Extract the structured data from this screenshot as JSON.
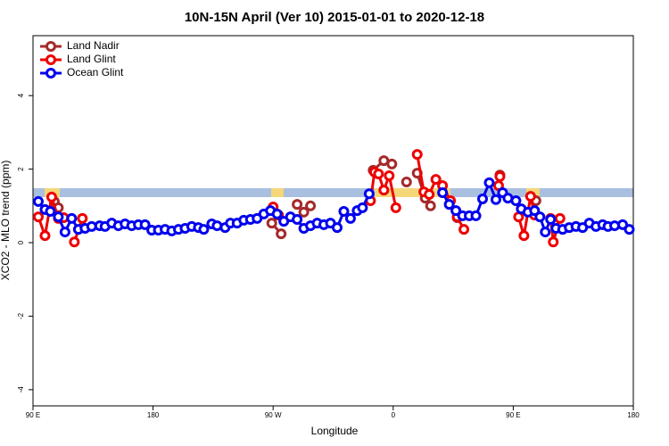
{
  "chart_data": {
    "type": "line",
    "title": "10N-15N April (Ver 10)   2015-01-01 to 2020-12-18",
    "xlabel": "Longitude",
    "ylabel": "XCO2 - MLO trend (ppm)",
    "xlim": [
      90,
      540
    ],
    "ylim": [
      -4.44,
      5.63
    ],
    "xticks": [
      {
        "value": 90,
        "label": "90 E"
      },
      180,
      {
        "value": 270,
        "label": "90 W"
      },
      {
        "value": 360,
        "label": "0"
      },
      {
        "value": 450,
        "label": "90 E"
      },
      {
        "value": 540,
        "label": "180"
      }
    ],
    "yticks": [
      -4,
      -2,
      0,
      2,
      4
    ],
    "legend": "top-left",
    "series": [
      {
        "name": "Land Nadir",
        "color": "#a52a2a",
        "x": [
          106,
          109,
          null,
          269,
          276,
          null,
          288,
          293,
          298,
          null,
          345,
          353,
          359,
          null,
          370,
          null,
          378,
          384,
          388,
          null,
          408,
          null,
          440,
          null,
          467
        ],
        "values": [
          1.12,
          0.95,
          null,
          0.53,
          0.24,
          null,
          1.04,
          0.83,
          1.0,
          null,
          1.97,
          2.23,
          2.14,
          null,
          1.65,
          null,
          1.89,
          1.21,
          1.0,
          null,
          0.68,
          null,
          1.84,
          null,
          1.14
        ]
      },
      {
        "name": "Land Glint",
        "color": "#ee0000",
        "x": [
          94,
          99,
          104,
          109,
          113,
          null,
          121,
          127,
          null,
          270,
          274,
          null,
          343,
          346,
          349,
          353,
          357,
          362,
          null,
          378,
          383,
          387,
          392,
          397,
          403,
          408,
          413,
          null,
          439,
          440,
          null,
          454,
          458,
          463,
          466,
          null,
          478,
          480,
          485
        ],
        "values": [
          0.7,
          0.19,
          1.24,
          0.66,
          0.68,
          null,
          0.02,
          0.66,
          null,
          0.97,
          0.75,
          null,
          1.14,
          1.92,
          1.87,
          1.43,
          1.82,
          0.95,
          null,
          2.4,
          1.38,
          1.31,
          1.72,
          1.55,
          1.14,
          0.7,
          0.36,
          null,
          1.55,
          1.8,
          null,
          0.7,
          0.19,
          1.26,
          0.75,
          null,
          0.66,
          0.02,
          0.66
        ]
      },
      {
        "name": "Ocean Glint",
        "color": "#0000ee",
        "x": [
          94,
          99,
          103,
          109,
          114,
          119,
          124,
          129,
          134,
          140,
          144,
          149,
          154,
          159,
          164,
          169,
          174,
          179,
          184,
          189,
          194,
          199,
          204,
          209,
          214,
          218,
          224,
          228,
          234,
          238,
          243,
          248,
          253,
          258,
          263,
          268,
          273,
          278,
          283,
          288,
          293,
          298,
          303,
          308,
          313,
          318,
          323,
          328,
          333,
          337,
          342,
          null,
          397,
          402,
          407,
          412,
          417,
          422,
          427,
          432,
          437,
          442,
          446,
          452,
          456,
          461,
          466,
          470,
          474,
          478,
          482,
          487,
          492,
          497,
          502,
          507,
          512,
          517,
          521,
          526,
          532,
          537
        ],
        "values": [
          1.12,
          0.9,
          0.85,
          0.7,
          0.29,
          0.66,
          0.36,
          0.39,
          0.44,
          0.46,
          0.44,
          0.53,
          0.46,
          0.51,
          0.46,
          0.49,
          0.49,
          0.34,
          0.34,
          0.36,
          0.32,
          0.36,
          0.39,
          0.44,
          0.41,
          0.36,
          0.51,
          0.46,
          0.41,
          0.53,
          0.53,
          0.61,
          0.63,
          0.66,
          0.78,
          0.87,
          0.78,
          0.58,
          0.7,
          0.63,
          0.39,
          0.46,
          0.53,
          0.49,
          0.53,
          0.41,
          0.85,
          0.66,
          0.87,
          0.95,
          1.33,
          null,
          1.36,
          1.04,
          0.87,
          0.73,
          0.73,
          0.73,
          1.19,
          1.63,
          1.17,
          1.36,
          1.21,
          1.14,
          0.92,
          0.83,
          0.87,
          0.7,
          0.29,
          0.63,
          0.39,
          0.36,
          0.41,
          0.44,
          0.41,
          0.53,
          0.44,
          0.49,
          0.44,
          0.46,
          0.49,
          0.36
        ]
      }
    ]
  }
}
